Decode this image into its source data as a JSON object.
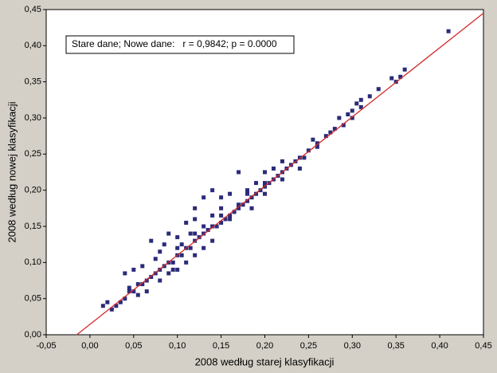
{
  "chart_data": {
    "type": "scatter",
    "x_label": "2008 według starej klasyfikacji",
    "y_label": "2008 według nowej klasyfikacji",
    "annotation": "Stare dane; Nowe dane:   r = 0,9842; p = 0.0000",
    "color": "#2b2b7a",
    "line_color": "#d42a2a",
    "xlim": [
      -0.05,
      0.45
    ],
    "ylim": [
      0,
      0.45
    ],
    "xticks": [
      {
        "value": -0.05,
        "label": "-0,05"
      },
      {
        "value": 0,
        "label": "0,00"
      },
      {
        "value": 0.05,
        "label": "0,05"
      },
      {
        "value": 0.1,
        "label": "0,10"
      },
      {
        "value": 0.15,
        "label": "0,15"
      },
      {
        "value": 0.2,
        "label": "0,20"
      },
      {
        "value": 0.25,
        "label": "0,25"
      },
      {
        "value": 0.3,
        "label": "0,30"
      },
      {
        "value": 0.35,
        "label": "0,35"
      },
      {
        "value": 0.4,
        "label": "0,40"
      },
      {
        "value": 0.45,
        "label": "0,45"
      }
    ],
    "yticks": [
      {
        "value": 0,
        "label": "0,00"
      },
      {
        "value": 0.05,
        "label": "0,05"
      },
      {
        "value": 0.1,
        "label": "0,10"
      },
      {
        "value": 0.15,
        "label": "0,15"
      },
      {
        "value": 0.2,
        "label": "0,20"
      },
      {
        "value": 0.25,
        "label": "0,25"
      },
      {
        "value": 0.3,
        "label": "0,30"
      },
      {
        "value": 0.35,
        "label": "0,35"
      },
      {
        "value": 0.4,
        "label": "0,40"
      },
      {
        "value": 0.45,
        "label": "0,45"
      }
    ],
    "regression_line": {
      "x": [
        -0.015,
        0.45
      ],
      "y": [
        0,
        0.445
      ]
    },
    "x": [
      0.41,
      0.36,
      0.355,
      0.35,
      0.345,
      0.33,
      0.32,
      0.31,
      0.305,
      0.3,
      0.295,
      0.29,
      0.285,
      0.28,
      0.275,
      0.27,
      0.26,
      0.255,
      0.25,
      0.245,
      0.24,
      0.235,
      0.23,
      0.225,
      0.22,
      0.215,
      0.21,
      0.205,
      0.2,
      0.2,
      0.195,
      0.19,
      0.185,
      0.18,
      0.18,
      0.175,
      0.17,
      0.165,
      0.16,
      0.155,
      0.15,
      0.15,
      0.145,
      0.14,
      0.135,
      0.13,
      0.125,
      0.12,
      0.12,
      0.115,
      0.11,
      0.105,
      0.1,
      0.1,
      0.095,
      0.09,
      0.085,
      0.08,
      0.075,
      0.07,
      0.065,
      0.06,
      0.055,
      0.05,
      0.045,
      0.04,
      0.035,
      0.03,
      0.02,
      0.015,
      0.025,
      0.04,
      0.05,
      0.06,
      0.07,
      0.08,
      0.09,
      0.1,
      0.11,
      0.12,
      0.13,
      0.14,
      0.15,
      0.16,
      0.17,
      0.12,
      0.13,
      0.14,
      0.15,
      0.17,
      0.18,
      0.19,
      0.2,
      0.21,
      0.22,
      0.3,
      0.31,
      0.08,
      0.09,
      0.1,
      0.11,
      0.12,
      0.13,
      0.14,
      0.16,
      0.185,
      0.2,
      0.22,
      0.24,
      0.26,
      0.075,
      0.085,
      0.095,
      0.105,
      0.115,
      0.065,
      0.055,
      0.045
    ],
    "y": [
      0.42,
      0.367,
      0.357,
      0.35,
      0.355,
      0.34,
      0.33,
      0.325,
      0.32,
      0.31,
      0.305,
      0.29,
      0.3,
      0.285,
      0.28,
      0.275,
      0.265,
      0.27,
      0.255,
      0.245,
      0.245,
      0.24,
      0.235,
      0.23,
      0.225,
      0.22,
      0.215,
      0.21,
      0.205,
      0.21,
      0.2,
      0.195,
      0.19,
      0.185,
      0.195,
      0.18,
      0.175,
      0.17,
      0.165,
      0.16,
      0.155,
      0.165,
      0.15,
      0.15,
      0.145,
      0.14,
      0.135,
      0.13,
      0.14,
      0.12,
      0.12,
      0.11,
      0.11,
      0.12,
      0.1,
      0.1,
      0.095,
      0.09,
      0.085,
      0.08,
      0.075,
      0.07,
      0.07,
      0.06,
      0.065,
      0.05,
      0.045,
      0.04,
      0.045,
      0.04,
      0.035,
      0.085,
      0.09,
      0.095,
      0.13,
      0.115,
      0.14,
      0.135,
      0.155,
      0.175,
      0.15,
      0.165,
      0.19,
      0.195,
      0.18,
      0.16,
      0.19,
      0.2,
      0.175,
      0.225,
      0.2,
      0.21,
      0.225,
      0.23,
      0.24,
      0.3,
      0.315,
      0.075,
      0.085,
      0.09,
      0.1,
      0.11,
      0.12,
      0.13,
      0.16,
      0.175,
      0.195,
      0.215,
      0.23,
      0.26,
      0.105,
      0.125,
      0.09,
      0.125,
      0.14,
      0.06,
      0.055,
      0.06
    ]
  }
}
